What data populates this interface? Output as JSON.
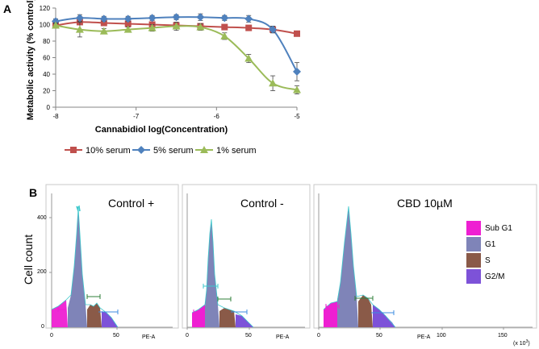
{
  "panel_a": {
    "label": "A",
    "chart_data": {
      "type": "line",
      "xlabel": "Cannabidiol  log(Concentration)",
      "ylabel": "Metabolic activity (% control)",
      "xlim": [
        -8,
        -5
      ],
      "ylim": [
        0,
        120
      ],
      "x_ticks": [
        -8,
        -7,
        -6,
        -5
      ],
      "y_ticks": [
        0,
        20,
        40,
        60,
        80,
        100,
        120
      ],
      "x_tick_labels": [
        "-8",
        "-7",
        "-6",
        "-5"
      ],
      "y_tick_labels": [
        "0",
        "20",
        "40",
        "60",
        "80",
        "100",
        "120"
      ],
      "grid": false,
      "legend_position": "bottom",
      "x": [
        -8,
        -7.7,
        -7.4,
        -7.1,
        -6.8,
        -6.5,
        -6.2,
        -5.9,
        -5.6,
        -5.3,
        -5
      ],
      "series": [
        {
          "name": "10% serum",
          "marker": "square",
          "color": "#c0504d",
          "values": [
            99,
            103,
            102,
            101,
            100,
            99,
            98,
            97,
            96,
            94,
            89
          ],
          "errors": [
            2,
            3,
            2,
            2,
            2,
            2,
            2,
            2,
            3,
            4,
            3
          ]
        },
        {
          "name": "5% serum",
          "marker": "diamond",
          "color": "#4f81bd",
          "values": [
            104,
            108,
            107,
            107,
            108,
            109,
            109,
            108,
            107,
            94,
            43
          ],
          "errors": [
            3,
            4,
            3,
            3,
            3,
            3,
            4,
            3,
            4,
            4,
            11
          ]
        },
        {
          "name": "1% serum",
          "marker": "triangle",
          "color": "#9bbb59",
          "values": [
            99,
            94,
            92,
            94,
            96,
            98,
            97,
            86,
            59,
            29,
            21
          ],
          "errors": [
            3,
            9,
            3,
            3,
            4,
            5,
            4,
            4,
            5,
            9,
            5
          ]
        }
      ]
    }
  },
  "panel_b": {
    "label": "B",
    "ylabel": "Cell count",
    "y_tick_labels": [
      "0",
      "200",
      "400"
    ],
    "x_tick_labels": [
      "0",
      "50",
      "100",
      "150"
    ],
    "x_axis_label": "PE-A",
    "x_multiplier": "(x 10",
    "x_multiplier_exp": "3",
    "x_multiplier_close": ")",
    "titles": [
      "Control +",
      "Control -",
      "CBD 10µM"
    ],
    "legend": [
      {
        "label": "Sub G1",
        "color": "#ee1fd2"
      },
      {
        "label": "G1",
        "color": "#7f84b8"
      },
      {
        "label": "S",
        "color": "#8a5a48"
      },
      {
        "label": "G2/M",
        "color": "#7d52d8"
      }
    ]
  }
}
